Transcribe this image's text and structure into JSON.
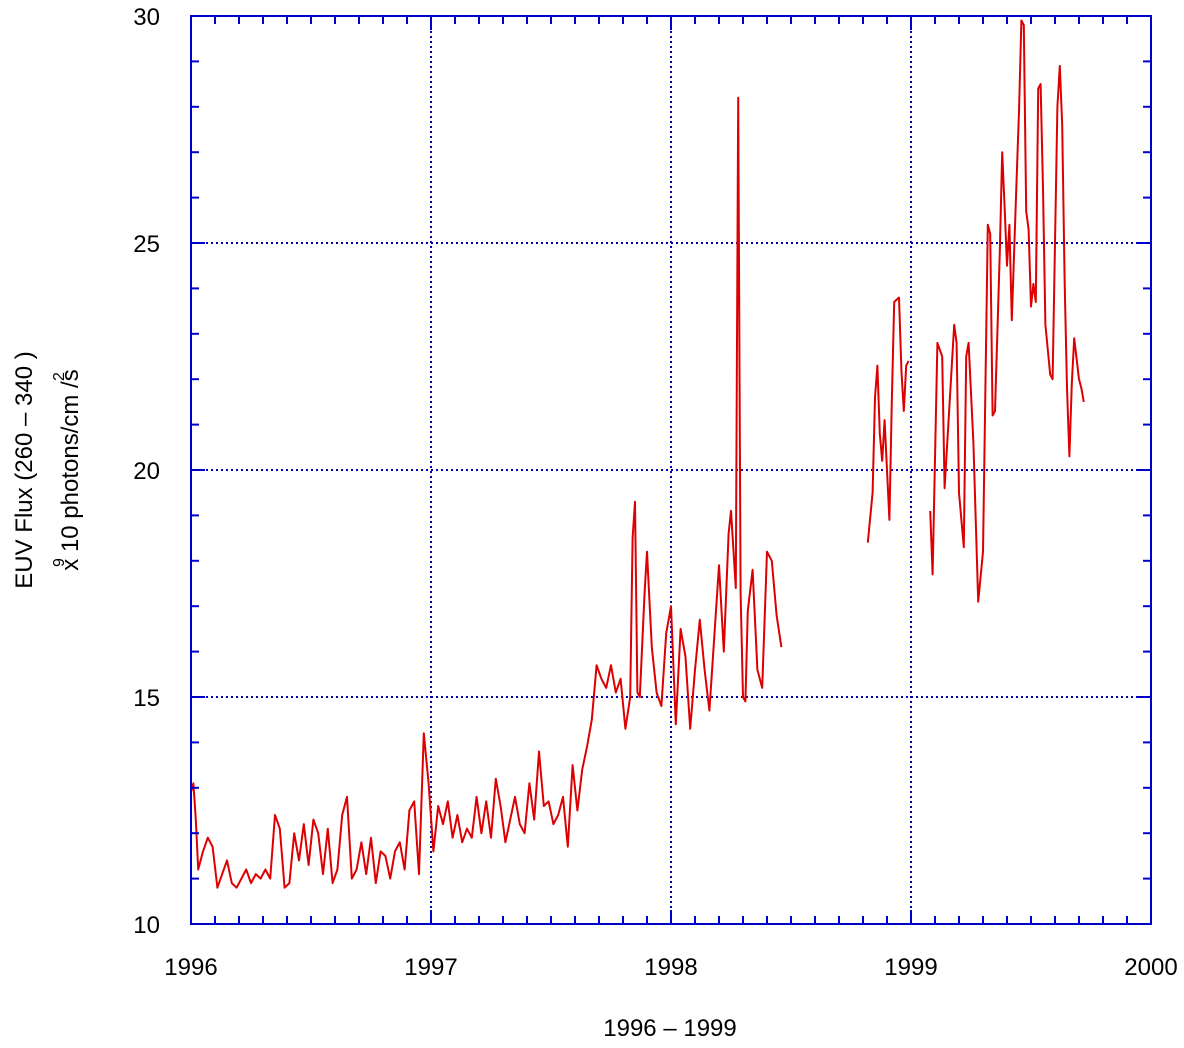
{
  "chart_data": {
    "type": "line",
    "title": "",
    "xlabel": "1996 – 1999",
    "ylabel_line1": "EUV Flux (260 – 340    )",
    "ylabel_line2": "x 10 photons/cm /s",
    "ylabel_sup_9": "9",
    "ylabel_sup_2": "2",
    "xlim": [
      1996,
      2000
    ],
    "ylim": [
      10,
      30
    ],
    "x_ticks": [
      1996,
      1997,
      1998,
      1999,
      2000
    ],
    "y_ticks": [
      10,
      15,
      20,
      25,
      30
    ],
    "x_tick_labels": [
      "1996",
      "1997",
      "1998",
      "1999",
      "2000"
    ],
    "y_tick_labels": [
      "10",
      "15",
      "20",
      "25",
      "30"
    ],
    "grid": true,
    "colors": {
      "line": "#dd0000",
      "frame": "#0000cc",
      "grid": "#0000aa"
    },
    "segments": [
      [
        [
          1996.0,
          12.9
        ],
        [
          1996.01,
          13.1
        ],
        [
          1996.02,
          12.3
        ],
        [
          1996.03,
          11.2
        ],
        [
          1996.05,
          11.6
        ],
        [
          1996.07,
          11.9
        ],
        [
          1996.09,
          11.7
        ],
        [
          1996.11,
          10.8
        ],
        [
          1996.13,
          11.1
        ],
        [
          1996.15,
          11.4
        ],
        [
          1996.17,
          10.9
        ],
        [
          1996.19,
          10.8
        ],
        [
          1996.21,
          11.0
        ],
        [
          1996.23,
          11.2
        ],
        [
          1996.25,
          10.9
        ],
        [
          1996.27,
          11.1
        ],
        [
          1996.29,
          11.0
        ],
        [
          1996.31,
          11.2
        ],
        [
          1996.33,
          11.0
        ],
        [
          1996.35,
          12.4
        ],
        [
          1996.37,
          12.1
        ],
        [
          1996.39,
          10.8
        ],
        [
          1996.41,
          10.9
        ],
        [
          1996.43,
          12.0
        ],
        [
          1996.45,
          11.4
        ],
        [
          1996.47,
          12.2
        ],
        [
          1996.49,
          11.3
        ],
        [
          1996.51,
          12.3
        ],
        [
          1996.53,
          12.0
        ],
        [
          1996.55,
          11.1
        ],
        [
          1996.57,
          12.1
        ],
        [
          1996.59,
          10.9
        ],
        [
          1996.61,
          11.2
        ],
        [
          1996.63,
          12.4
        ],
        [
          1996.65,
          12.8
        ],
        [
          1996.67,
          11.0
        ],
        [
          1996.69,
          11.2
        ],
        [
          1996.71,
          11.8
        ],
        [
          1996.73,
          11.1
        ],
        [
          1996.75,
          11.9
        ],
        [
          1996.77,
          10.9
        ],
        [
          1996.79,
          11.6
        ],
        [
          1996.81,
          11.5
        ],
        [
          1996.83,
          11.0
        ],
        [
          1996.85,
          11.6
        ],
        [
          1996.87,
          11.8
        ],
        [
          1996.89,
          11.2
        ],
        [
          1996.91,
          12.5
        ],
        [
          1996.93,
          12.7
        ],
        [
          1996.95,
          11.1
        ],
        [
          1996.97,
          14.2
        ],
        [
          1996.99,
          13.1
        ],
        [
          1997.01,
          11.6
        ],
        [
          1997.03,
          12.6
        ],
        [
          1997.05,
          12.2
        ],
        [
          1997.07,
          12.7
        ],
        [
          1997.09,
          11.9
        ],
        [
          1997.11,
          12.4
        ],
        [
          1997.13,
          11.8
        ],
        [
          1997.15,
          12.1
        ],
        [
          1997.17,
          11.9
        ],
        [
          1997.19,
          12.8
        ],
        [
          1997.21,
          12.0
        ],
        [
          1997.23,
          12.7
        ],
        [
          1997.25,
          11.9
        ],
        [
          1997.27,
          13.2
        ],
        [
          1997.29,
          12.6
        ],
        [
          1997.31,
          11.8
        ],
        [
          1997.33,
          12.3
        ],
        [
          1997.35,
          12.8
        ],
        [
          1997.37,
          12.2
        ],
        [
          1997.39,
          12.0
        ],
        [
          1997.41,
          13.1
        ],
        [
          1997.43,
          12.3
        ],
        [
          1997.45,
          13.8
        ],
        [
          1997.47,
          12.6
        ],
        [
          1997.49,
          12.7
        ],
        [
          1997.51,
          12.2
        ],
        [
          1997.53,
          12.4
        ],
        [
          1997.55,
          12.8
        ],
        [
          1997.57,
          11.7
        ],
        [
          1997.59,
          13.5
        ],
        [
          1997.61,
          12.5
        ],
        [
          1997.63,
          13.4
        ],
        [
          1997.65,
          13.9
        ],
        [
          1997.67,
          14.5
        ],
        [
          1997.69,
          15.7
        ],
        [
          1997.71,
          15.4
        ],
        [
          1997.73,
          15.2
        ],
        [
          1997.75,
          15.7
        ],
        [
          1997.77,
          15.1
        ],
        [
          1997.79,
          15.4
        ],
        [
          1997.81,
          14.3
        ],
        [
          1997.83,
          15.0
        ],
        [
          1997.84,
          18.5
        ],
        [
          1997.85,
          19.3
        ],
        [
          1997.86,
          15.1
        ],
        [
          1997.87,
          15.0
        ],
        [
          1997.89,
          17.3
        ],
        [
          1997.9,
          18.2
        ],
        [
          1997.92,
          16.1
        ],
        [
          1997.94,
          15.1
        ],
        [
          1997.96,
          14.8
        ],
        [
          1997.98,
          16.4
        ],
        [
          1998.0,
          17.0
        ],
        [
          1998.02,
          14.4
        ],
        [
          1998.04,
          16.5
        ],
        [
          1998.06,
          15.9
        ],
        [
          1998.08,
          14.3
        ],
        [
          1998.1,
          15.6
        ],
        [
          1998.12,
          16.7
        ],
        [
          1998.14,
          15.6
        ],
        [
          1998.16,
          14.7
        ],
        [
          1998.18,
          16.3
        ],
        [
          1998.2,
          17.9
        ],
        [
          1998.22,
          16.0
        ],
        [
          1998.24,
          18.6
        ],
        [
          1998.25,
          19.1
        ],
        [
          1998.27,
          17.4
        ],
        [
          1998.28,
          28.2
        ],
        [
          1998.29,
          17.3
        ],
        [
          1998.3,
          15.0
        ],
        [
          1998.31,
          14.9
        ],
        [
          1998.32,
          16.9
        ],
        [
          1998.34,
          17.8
        ],
        [
          1998.36,
          15.6
        ],
        [
          1998.38,
          15.2
        ],
        [
          1998.4,
          18.2
        ],
        [
          1998.42,
          18.0
        ],
        [
          1998.44,
          16.8
        ],
        [
          1998.46,
          16.1
        ]
      ],
      [
        [
          1998.82,
          18.4
        ],
        [
          1998.84,
          19.5
        ],
        [
          1998.85,
          21.6
        ],
        [
          1998.86,
          22.3
        ],
        [
          1998.87,
          20.8
        ],
        [
          1998.88,
          20.2
        ],
        [
          1998.89,
          21.1
        ],
        [
          1998.91,
          18.9
        ],
        [
          1998.92,
          21.5
        ],
        [
          1998.93,
          23.7
        ],
        [
          1998.95,
          23.8
        ],
        [
          1998.96,
          22.2
        ],
        [
          1998.97,
          21.3
        ],
        [
          1998.98,
          22.3
        ],
        [
          1998.99,
          22.4
        ]
      ],
      [
        [
          1999.08,
          19.1
        ],
        [
          1999.09,
          17.7
        ],
        [
          1999.11,
          22.8
        ],
        [
          1999.13,
          22.5
        ],
        [
          1999.14,
          19.6
        ],
        [
          1999.16,
          21.4
        ],
        [
          1999.18,
          23.2
        ],
        [
          1999.19,
          22.8
        ],
        [
          1999.2,
          19.5
        ],
        [
          1999.22,
          18.3
        ],
        [
          1999.23,
          22.5
        ],
        [
          1999.24,
          22.8
        ],
        [
          1999.26,
          20.6
        ],
        [
          1999.28,
          17.1
        ],
        [
          1999.3,
          18.2
        ],
        [
          1999.32,
          25.4
        ],
        [
          1999.33,
          25.2
        ],
        [
          1999.34,
          21.2
        ],
        [
          1999.35,
          21.3
        ],
        [
          1999.37,
          24.8
        ],
        [
          1999.38,
          27.0
        ],
        [
          1999.39,
          25.8
        ],
        [
          1999.4,
          24.5
        ],
        [
          1999.41,
          25.4
        ],
        [
          1999.42,
          23.3
        ],
        [
          1999.44,
          26.4
        ],
        [
          1999.45,
          27.9
        ],
        [
          1999.46,
          29.9
        ],
        [
          1999.47,
          29.8
        ],
        [
          1999.48,
          25.7
        ],
        [
          1999.49,
          25.3
        ],
        [
          1999.5,
          23.6
        ],
        [
          1999.51,
          24.1
        ],
        [
          1999.52,
          23.7
        ],
        [
          1999.53,
          28.4
        ],
        [
          1999.54,
          28.5
        ],
        [
          1999.55,
          26.2
        ],
        [
          1999.56,
          23.2
        ],
        [
          1999.58,
          22.1
        ],
        [
          1999.59,
          22.0
        ],
        [
          1999.61,
          28.0
        ],
        [
          1999.62,
          28.9
        ],
        [
          1999.63,
          27.6
        ],
        [
          1999.64,
          24.2
        ],
        [
          1999.65,
          21.8
        ],
        [
          1999.66,
          20.3
        ],
        [
          1999.67,
          21.9
        ],
        [
          1999.68,
          22.9
        ],
        [
          1999.7,
          22.0
        ],
        [
          1999.71,
          21.8
        ],
        [
          1999.72,
          21.5
        ]
      ]
    ]
  }
}
